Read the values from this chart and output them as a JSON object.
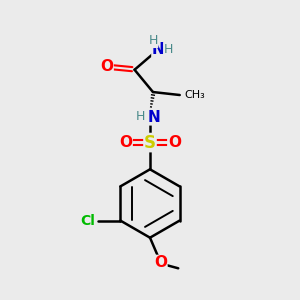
{
  "bg_color": "#ebebeb",
  "atom_colors": {
    "C": "#000000",
    "N": "#0000cc",
    "O": "#ff0000",
    "S": "#cccc00",
    "Cl": "#00bb00",
    "H": "#4a8a8a"
  },
  "figsize": [
    3.0,
    3.0
  ],
  "dpi": 100,
  "xlim": [
    0,
    10
  ],
  "ylim": [
    0,
    10
  ]
}
